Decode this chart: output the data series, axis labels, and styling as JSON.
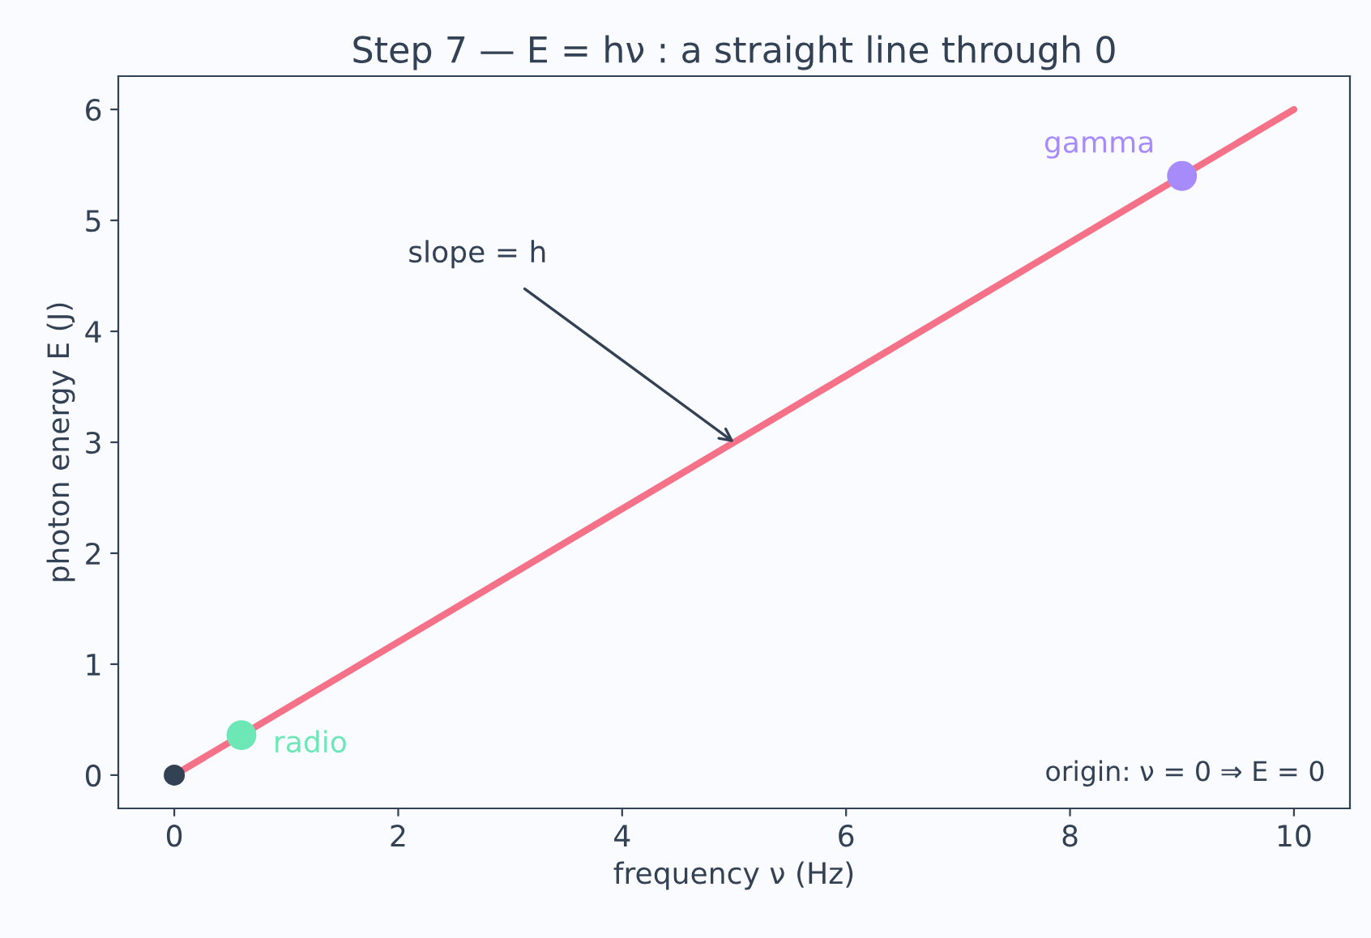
{
  "chart_data": {
    "type": "line",
    "title": "Step 7 — E = hν : a straight line through 0",
    "xlabel": "frequency ν (Hz)",
    "ylabel": "photon energy E (J)",
    "xlim": [
      -0.5,
      10.5
    ],
    "ylim": [
      -0.3,
      6.3
    ],
    "xticks": [
      0,
      2,
      4,
      6,
      8,
      10
    ],
    "yticks": [
      0,
      1,
      2,
      3,
      4,
      5,
      6
    ],
    "grid": false,
    "legend": false,
    "series": [
      {
        "color": "#f47188",
        "x": [
          0,
          10
        ],
        "values": [
          0,
          6
        ],
        "marker": "none"
      },
      {
        "type": "scatter",
        "color": "#334155",
        "x": [
          0
        ],
        "values": [
          0
        ],
        "marker": "circle"
      },
      {
        "type": "scatter",
        "name": "radio",
        "color": "#6ee7b7",
        "x": [
          0.6
        ],
        "values": [
          0.36
        ],
        "marker": "circle"
      },
      {
        "type": "scatter",
        "name": "gamma",
        "color": "#a78bfa",
        "x": [
          9
        ],
        "values": [
          5.4
        ],
        "marker": "circle"
      }
    ],
    "annotations": [
      {
        "text": "slope = h",
        "x": 5,
        "y": 3
      },
      "origin: ν = 0 ⇒ E = 0"
    ]
  }
}
